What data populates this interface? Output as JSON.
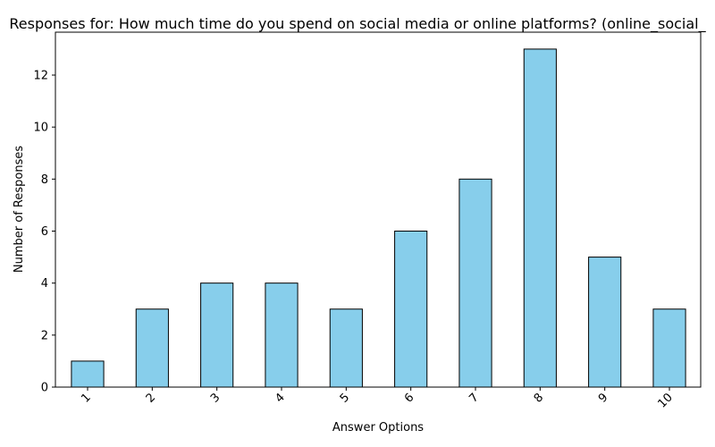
{
  "chart_data": {
    "type": "bar",
    "title": "Responses for: How much time do you spend on social media or online platforms? (online_social_",
    "xlabel": "Answer Options",
    "ylabel": "Number of Responses",
    "categories": [
      "1",
      "2",
      "3",
      "4",
      "5",
      "6",
      "7",
      "8",
      "9",
      "10"
    ],
    "values": [
      1,
      3,
      4,
      4,
      3,
      6,
      8,
      13,
      5,
      3
    ],
    "ylim": [
      0,
      13.65
    ],
    "yticks": [
      0,
      2,
      4,
      6,
      8,
      10,
      12
    ],
    "grid": false,
    "legend": "none",
    "bar_color": "#87ceeb",
    "edge_color": "#000000"
  }
}
